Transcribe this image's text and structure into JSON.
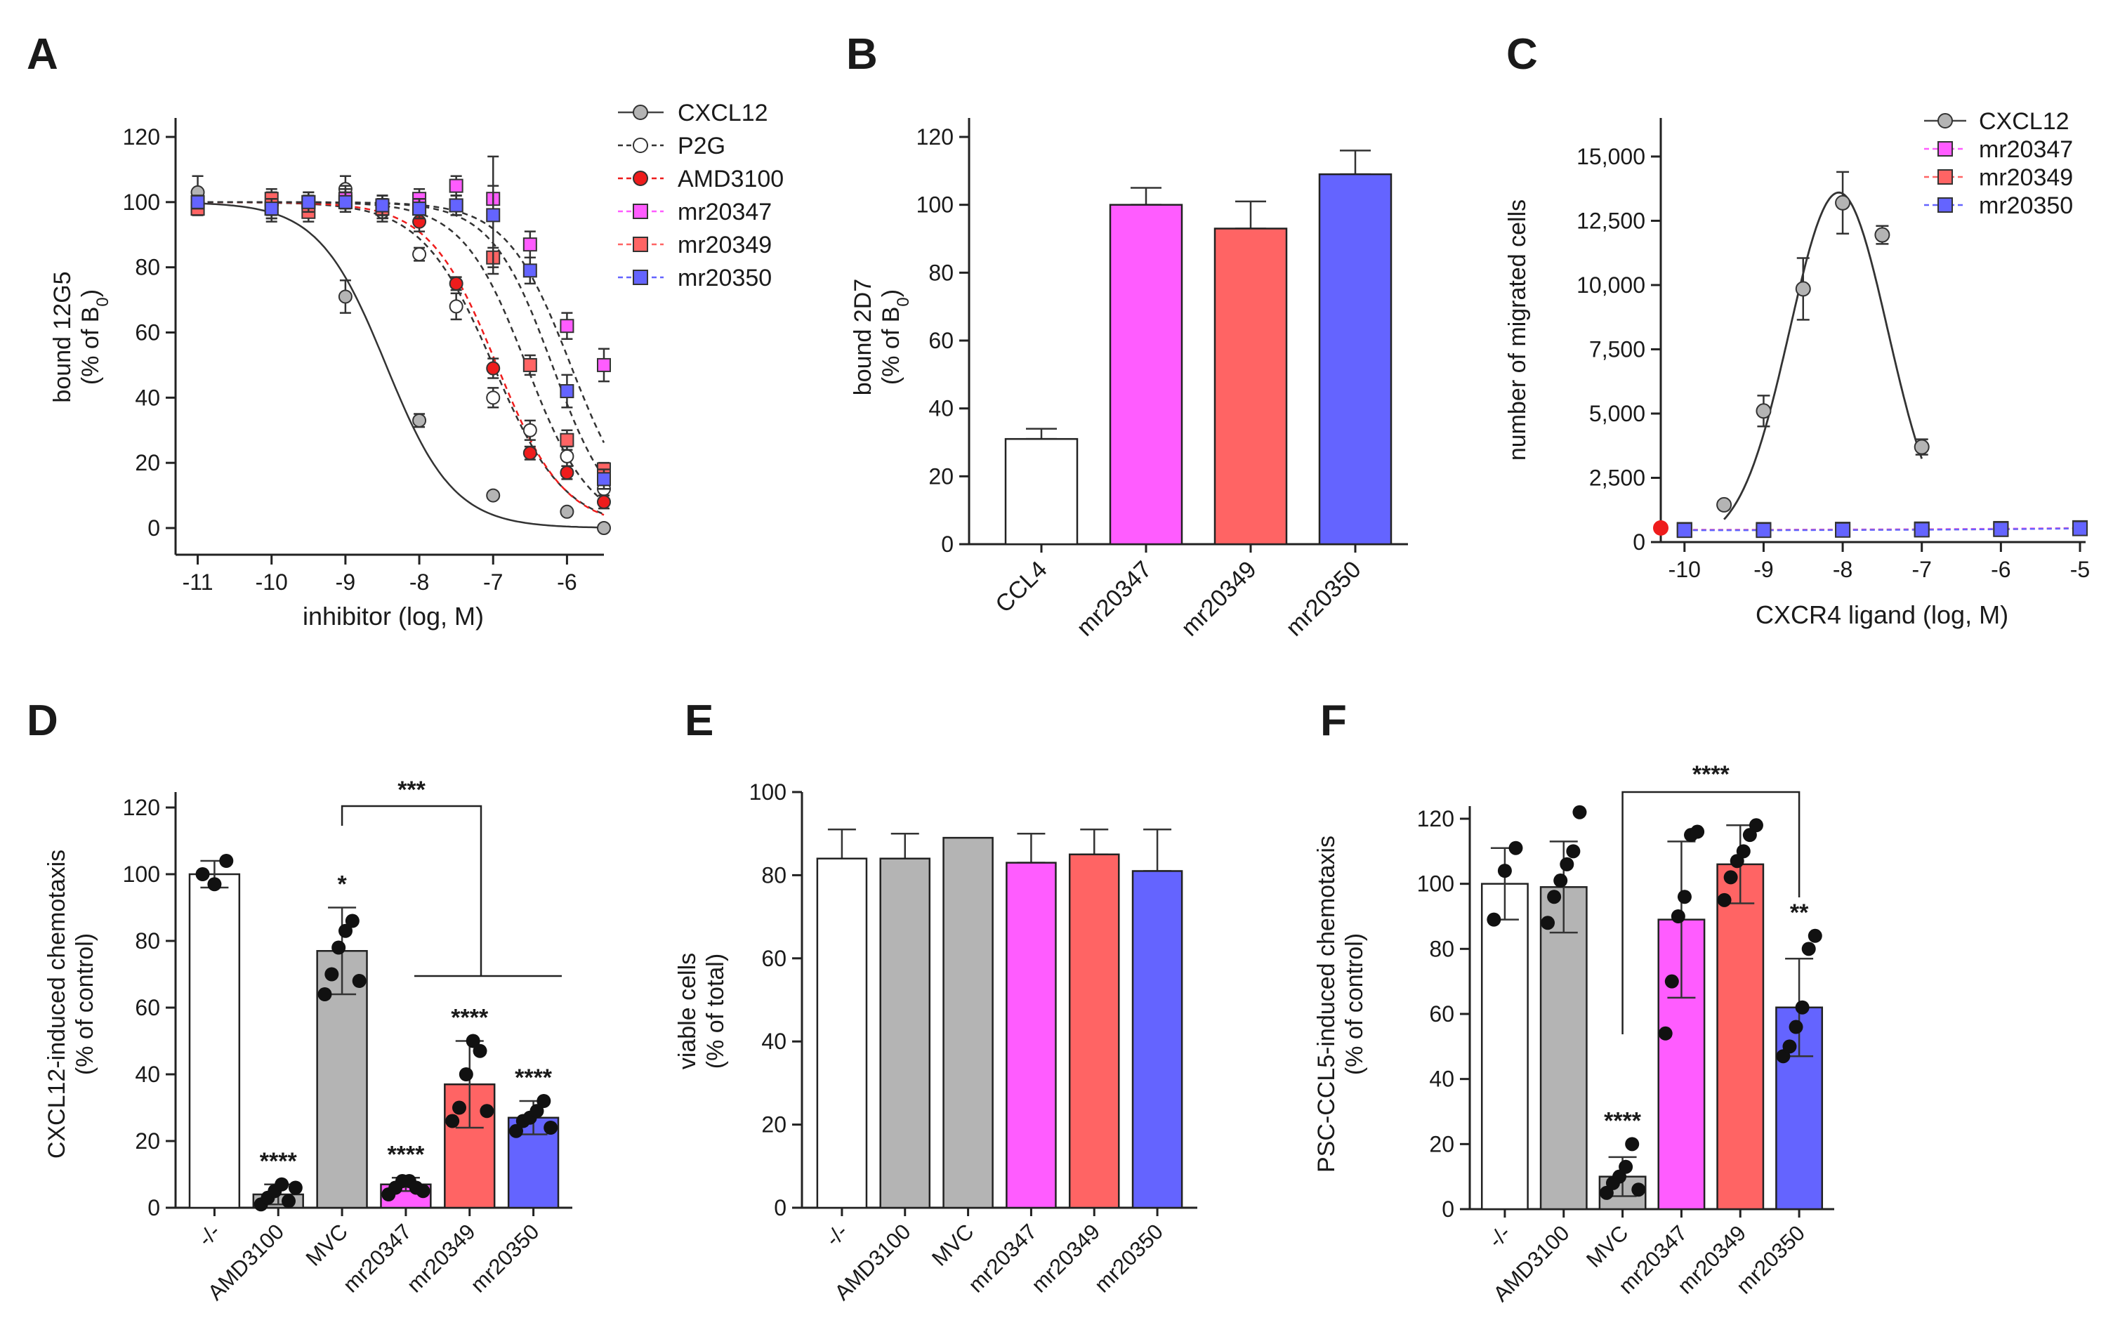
{
  "colors": {
    "white": "#ffffff",
    "grey": "#b4b4b4",
    "magenta": "#ff5cff",
    "red": "#ff6464",
    "blue": "#6464ff",
    "ptRed": "#ee1c1c",
    "axis": "#222222"
  },
  "chart_data": [
    {
      "panel": "A",
      "type": "scatter",
      "xlabel": "inhibitor (log, M)",
      "ylabel": [
        "bound 12G5",
        "(% of B",
        "0",
        ")"
      ],
      "xlim": [
        -11.3,
        -5.5
      ],
      "ylim": [
        -5,
        125
      ],
      "xticks": [
        -11,
        -10,
        -9,
        -8,
        -7,
        -6
      ],
      "yticks": [
        0,
        20,
        40,
        60,
        80,
        100,
        120
      ],
      "legend_position": "right",
      "series": [
        {
          "name": "CXCL12",
          "style": "grey",
          "fit": "solid",
          "ic50": -8.45,
          "hill": 0.95,
          "x": [
            -11,
            -10,
            -9,
            -8,
            -7,
            -6,
            -5.5
          ],
          "y": [
            103,
            99,
            71,
            33,
            10,
            5,
            0
          ],
          "err": [
            5,
            4,
            5,
            2,
            0,
            0,
            0
          ]
        },
        {
          "name": "P2G",
          "style": "open",
          "fit": "dashed",
          "ic50": -7.0,
          "hill": 0.9,
          "x": [
            -11,
            -10,
            -9,
            -8.5,
            -8,
            -7.5,
            -7,
            -6.5,
            -6,
            -5.5
          ],
          "y": [
            99,
            99,
            104,
            97,
            84,
            68,
            40,
            30,
            22,
            12
          ],
          "err": [
            2,
            3,
            4,
            3,
            2,
            4,
            3,
            3,
            3,
            2
          ]
        },
        {
          "name": "AMD3100",
          "style": "red",
          "fit": "dashed",
          "ic50": -6.95,
          "hill": 0.95,
          "x": [
            -11,
            -10,
            -9.5,
            -9,
            -8.5,
            -8,
            -7.5,
            -7,
            -6.5,
            -6,
            -5.5
          ],
          "y": [
            98,
            100,
            99,
            101,
            99,
            94,
            75,
            49,
            23,
            17,
            8
          ],
          "err": [
            2,
            3,
            3,
            3,
            3,
            3,
            2,
            3,
            2,
            2,
            2
          ]
        },
        {
          "name": "mr20347",
          "style": "magenta",
          "fit": "dashed",
          "ic50": -5.95,
          "hill": 1.0,
          "x": [
            -11,
            -10,
            -9.5,
            -9,
            -8.5,
            -8,
            -7.5,
            -7,
            -6.5,
            -6,
            -5.5
          ],
          "y": [
            98,
            98,
            100,
            101,
            99,
            101,
            105,
            101,
            87,
            62,
            50
          ],
          "err": [
            2,
            4,
            3,
            4,
            3,
            3,
            3,
            4,
            4,
            4,
            5
          ]
        },
        {
          "name": "mr20349",
          "style": "red-sq",
          "fit": "dashed",
          "ic50": -6.55,
          "hill": 1.0,
          "x": [
            -11,
            -10,
            -9.5,
            -9,
            -8.5,
            -8,
            -7.5,
            -7,
            -6.5,
            -6,
            -5.5
          ],
          "y": [
            98,
            101,
            97,
            100,
            98,
            98,
            99,
            83,
            50,
            27,
            18
          ],
          "err": [
            2,
            3,
            3,
            3,
            3,
            3,
            3,
            3,
            3,
            3,
            2
          ]
        },
        {
          "name": "mr20350",
          "style": "blue",
          "fit": "dashed",
          "ic50": -6.2,
          "hill": 1.05,
          "x": [
            -11,
            -10,
            -9.5,
            -9,
            -8.5,
            -8,
            -7.5,
            -7,
            -6.5,
            -6,
            -5.5
          ],
          "y": [
            100,
            98,
            100,
            100,
            99,
            98,
            99,
            96,
            79,
            42,
            15
          ],
          "err": [
            2,
            3,
            3,
            3,
            3,
            3,
            3,
            18,
            4,
            5,
            3
          ]
        }
      ]
    },
    {
      "panel": "B",
      "type": "bar",
      "ylabel": [
        "bound 2D7",
        "(% of B",
        "0",
        ")"
      ],
      "ylim": [
        0,
        120
      ],
      "yticks": [
        0,
        20,
        40,
        60,
        80,
        100,
        120
      ],
      "categories": [
        "CCL4",
        "mr20347",
        "mr20349",
        "mr20350"
      ],
      "values": [
        31,
        100,
        93,
        109
      ],
      "errors": [
        3,
        5,
        8,
        7
      ],
      "fills": [
        "white",
        "magenta",
        "red",
        "blue"
      ]
    },
    {
      "panel": "C",
      "type": "line",
      "xlabel": "CXCR4 ligand (log, M)",
      "ylabel": "number of migrated cells",
      "xlim": [
        -10.3,
        -5
      ],
      "ylim": [
        0,
        16500
      ],
      "xticks": [
        -10,
        -9,
        -8,
        -7,
        -6,
        -5
      ],
      "yticks": [
        0,
        2500,
        5000,
        7500,
        10000,
        12500,
        15000
      ],
      "ytick_labels": [
        "0",
        "2,500",
        "5,000",
        "7,500",
        "10,000",
        "12,500",
        "15,000"
      ],
      "baseline_point": {
        "x": -10.3,
        "y": 550
      },
      "legend_position": "top-right",
      "series": [
        {
          "name": "CXCL12",
          "style": "grey",
          "x": [
            -9.5,
            -9,
            -8.5,
            -8,
            -7.5,
            -7
          ],
          "y": [
            1450,
            5100,
            9850,
            13200,
            11950,
            3700
          ],
          "err": [
            100,
            600,
            1200,
            1200,
            350,
            300
          ]
        },
        {
          "name": "mr20347",
          "style": "magenta",
          "x": [
            -10,
            -9,
            -8,
            -7,
            -6,
            -5
          ],
          "y": [
            480,
            480,
            490,
            500,
            520,
            550
          ],
          "err": [
            0,
            0,
            0,
            0,
            0,
            0
          ]
        },
        {
          "name": "mr20349",
          "style": "red-sq",
          "x": [
            -10,
            -9,
            -8,
            -7,
            -6,
            -5
          ],
          "y": [
            470,
            470,
            480,
            490,
            500,
            540
          ],
          "err": [
            0,
            0,
            0,
            0,
            0,
            0
          ]
        },
        {
          "name": "mr20350",
          "style": "blue",
          "x": [
            -10,
            -9,
            -8,
            -7,
            -6,
            -5
          ],
          "y": [
            460,
            460,
            470,
            480,
            500,
            530
          ],
          "err": [
            0,
            0,
            0,
            0,
            0,
            0
          ]
        }
      ]
    },
    {
      "panel": "D",
      "type": "bar",
      "ylabel": [
        "CXCL12-induced chemotaxis",
        "(% of control)"
      ],
      "ylim": [
        0,
        120
      ],
      "yticks": [
        0,
        20,
        40,
        60,
        80,
        100,
        120
      ],
      "categories": [
        "-/-",
        "AMD3100",
        "MVC",
        "mr20347",
        "mr20349",
        "mr20350"
      ],
      "values": [
        100,
        4,
        77,
        7,
        37,
        27
      ],
      "errors": [
        4,
        3,
        13,
        2,
        13,
        5
      ],
      "fills": [
        "white",
        "grey",
        "grey",
        "magenta",
        "red",
        "blue"
      ],
      "significance": [
        "",
        "****",
        "*",
        "****",
        "****",
        "****"
      ],
      "bracket_label": "***",
      "points": [
        [
          100,
          97,
          104
        ],
        [
          1,
          3,
          5,
          7,
          2,
          6
        ],
        [
          64,
          70,
          78,
          83,
          86,
          68
        ],
        [
          4,
          6,
          8,
          8,
          6,
          5
        ],
        [
          26,
          30,
          40,
          50,
          47,
          29
        ],
        [
          23,
          26,
          27,
          29,
          32,
          24
        ]
      ]
    },
    {
      "panel": "E",
      "type": "bar",
      "ylabel": [
        "viable cells",
        "(% of total)"
      ],
      "ylim": [
        0,
        100
      ],
      "yticks": [
        0,
        20,
        40,
        60,
        80,
        100
      ],
      "categories": [
        "-/-",
        "AMD3100",
        "MVC",
        "mr20347",
        "mr20349",
        "mr20350"
      ],
      "values": [
        84,
        84,
        89,
        83,
        85,
        81
      ],
      "errors": [
        7,
        6,
        0,
        7,
        6,
        10
      ],
      "fills": [
        "white",
        "grey",
        "grey",
        "magenta",
        "red",
        "blue"
      ]
    },
    {
      "panel": "F",
      "type": "bar",
      "ylabel": [
        "PSC-CCL5-induced chemotaxis",
        "(% of control)"
      ],
      "ylim": [
        0,
        120
      ],
      "yticks": [
        0,
        20,
        40,
        60,
        80,
        100,
        120
      ],
      "categories": [
        "-/-",
        "AMD3100",
        "MVC",
        "mr20347",
        "mr20349",
        "mr20350"
      ],
      "values": [
        100,
        99,
        10,
        89,
        106,
        62
      ],
      "errors": [
        11,
        14,
        6,
        24,
        12,
        15
      ],
      "fills": [
        "white",
        "grey",
        "grey",
        "magenta",
        "red",
        "blue"
      ],
      "significance": [
        "",
        "",
        "****",
        "",
        "",
        "**"
      ],
      "bracket_label": "****",
      "points": [
        [
          89,
          104,
          111
        ],
        [
          88,
          96,
          101,
          106,
          110,
          122
        ],
        [
          5,
          8,
          10,
          13,
          20,
          6
        ],
        [
          54,
          70,
          90,
          96,
          115,
          116
        ],
        [
          95,
          102,
          107,
          110,
          115,
          118
        ],
        [
          47,
          50,
          56,
          62,
          80,
          84
        ]
      ]
    }
  ]
}
